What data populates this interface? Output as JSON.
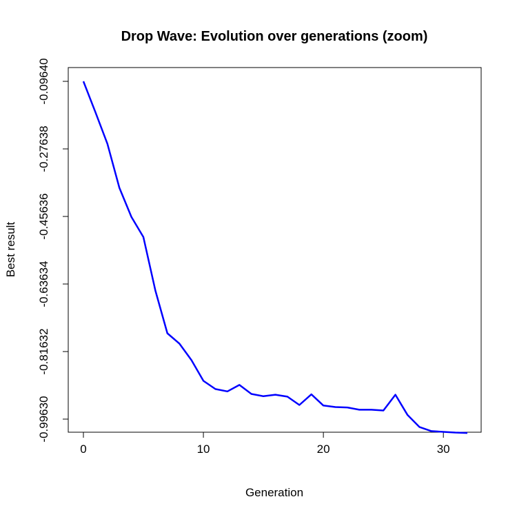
{
  "chart_data": {
    "type": "line",
    "title": "Drop Wave: Evolution over generations (zoom)",
    "xlabel": "Generation",
    "ylabel": "Best result",
    "xlim": [
      0,
      32
    ],
    "ylim": [
      -0.9963,
      -0.0964
    ],
    "x_ticks": [
      0,
      10,
      20,
      30
    ],
    "y_ticks": [
      -0.0964,
      -0.27638,
      -0.45636,
      -0.63634,
      -0.81632,
      -0.9963
    ],
    "x_tick_labels": [
      "0",
      "10",
      "20",
      "30"
    ],
    "y_tick_labels": [
      "-0.09640",
      "-0.27638",
      "-0.45636",
      "-0.63634",
      "-0.81632",
      "-0.99630"
    ],
    "grid": false,
    "legend": "none",
    "series": [
      {
        "color": "#0000ff",
        "x": [
          0,
          1,
          2,
          3,
          4,
          5,
          6,
          7,
          8,
          9,
          10,
          11,
          12,
          13,
          14,
          15,
          16,
          17,
          18,
          19,
          20,
          21,
          22,
          23,
          24,
          25,
          26,
          27,
          28,
          29,
          30,
          31,
          32
        ],
        "values": [
          -0.0964,
          -0.1785,
          -0.2627,
          -0.3802,
          -0.4574,
          -0.5113,
          -0.6538,
          -0.7677,
          -0.7952,
          -0.8391,
          -0.8943,
          -0.9163,
          -0.9225,
          -0.9052,
          -0.9292,
          -0.9353,
          -0.9312,
          -0.9364,
          -0.9586,
          -0.9303,
          -0.9602,
          -0.9642,
          -0.9652,
          -0.9713,
          -0.9713,
          -0.9734,
          -0.9313,
          -0.9847,
          -1.0172,
          -1.0282,
          -1.0302,
          -1.0322,
          -1.0333
        ]
      }
    ]
  }
}
